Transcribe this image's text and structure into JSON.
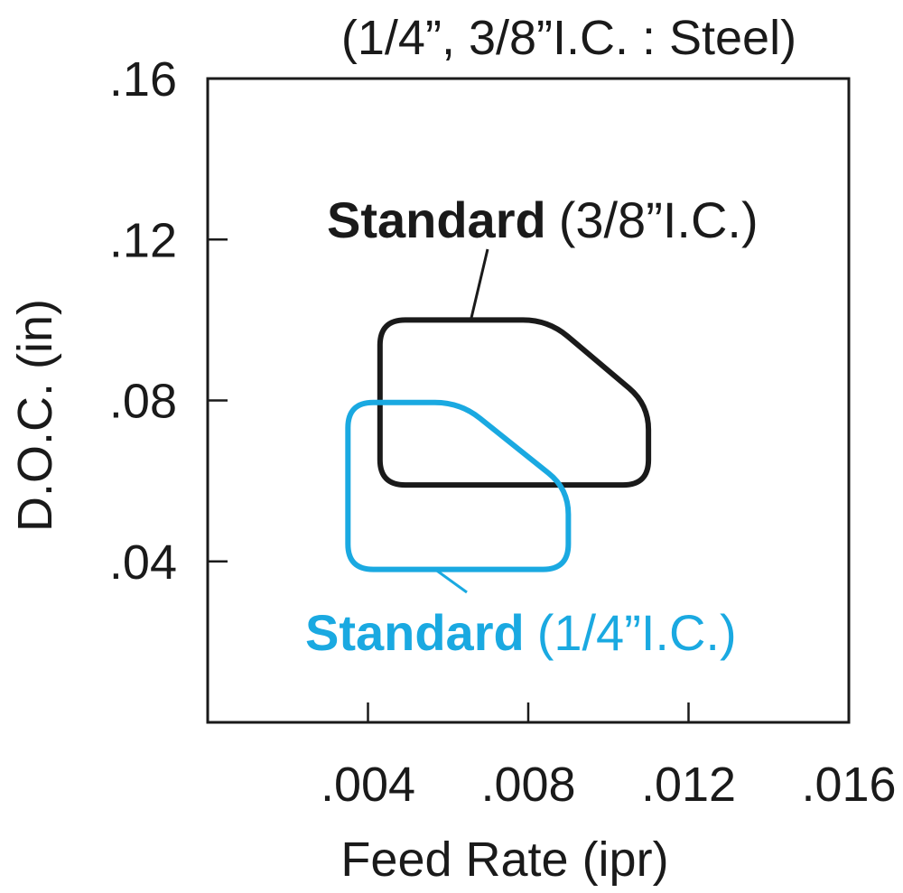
{
  "chart_data": {
    "type": "area",
    "title": "(1/4”, 3/8”I.C. : Steel)",
    "xlabel": "Feed Rate (ipr)",
    "ylabel": "D.O.C. (in)",
    "xlim": [
      0,
      0.016
    ],
    "ylim": [
      0,
      0.16
    ],
    "x_ticks": [
      0.004,
      0.008,
      0.012,
      0.016
    ],
    "y_ticks": [
      0.04,
      0.08,
      0.12,
      0.16
    ],
    "x_tick_labels": [
      ".004",
      ".008",
      ".012",
      ".016"
    ],
    "y_tick_labels": [
      ".04",
      ".08",
      ".12",
      ".16"
    ],
    "grid": false,
    "colors": {
      "series_1": "#1a1a1a",
      "series_2": "#1aa9e1",
      "axis": "#1a1a1a",
      "text": "#1a1a1a"
    },
    "series": [
      {
        "label_main": "Standard",
        "label_sub": "(3/8”I.C.)",
        "color": "#1a1a1a",
        "polygon": [
          [
            0.0043,
            0.1
          ],
          [
            0.0085,
            0.1
          ],
          [
            0.011,
            0.079
          ],
          [
            0.011,
            0.059
          ],
          [
            0.0043,
            0.059
          ]
        ]
      },
      {
        "label_main": "Standard",
        "label_sub": "(1/4”I.C.)",
        "color": "#1aa9e1",
        "polygon": [
          [
            0.0035,
            0.0795
          ],
          [
            0.0063,
            0.0795
          ],
          [
            0.009,
            0.058
          ],
          [
            0.009,
            0.038
          ],
          [
            0.0035,
            0.038
          ]
        ]
      }
    ]
  }
}
